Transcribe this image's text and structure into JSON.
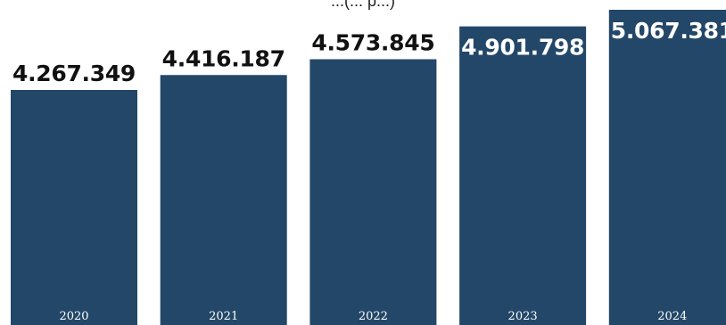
{
  "chart_data": {
    "type": "bar",
    "title": "",
    "subtitle_visible_fragment": "...(... p...)",
    "categories": [
      "2020",
      "2021",
      "2022",
      "2023",
      "2024"
    ],
    "values": [
      4267349,
      4416187,
      4573845,
      4901798,
      5067381
    ],
    "value_labels": [
      "4.267.349",
      "4.416.187",
      "4.573.845",
      "4.901.798",
      "5.067.381"
    ],
    "value_label_inside_bar": [
      false,
      false,
      false,
      true,
      true
    ],
    "xlabel": "",
    "ylabel": "",
    "grid": false,
    "legend": "none",
    "colors": {
      "bar": "#234768",
      "label_outside": "#111111",
      "label_inside": "#ffffff",
      "year_label": "#ffffff"
    }
  }
}
